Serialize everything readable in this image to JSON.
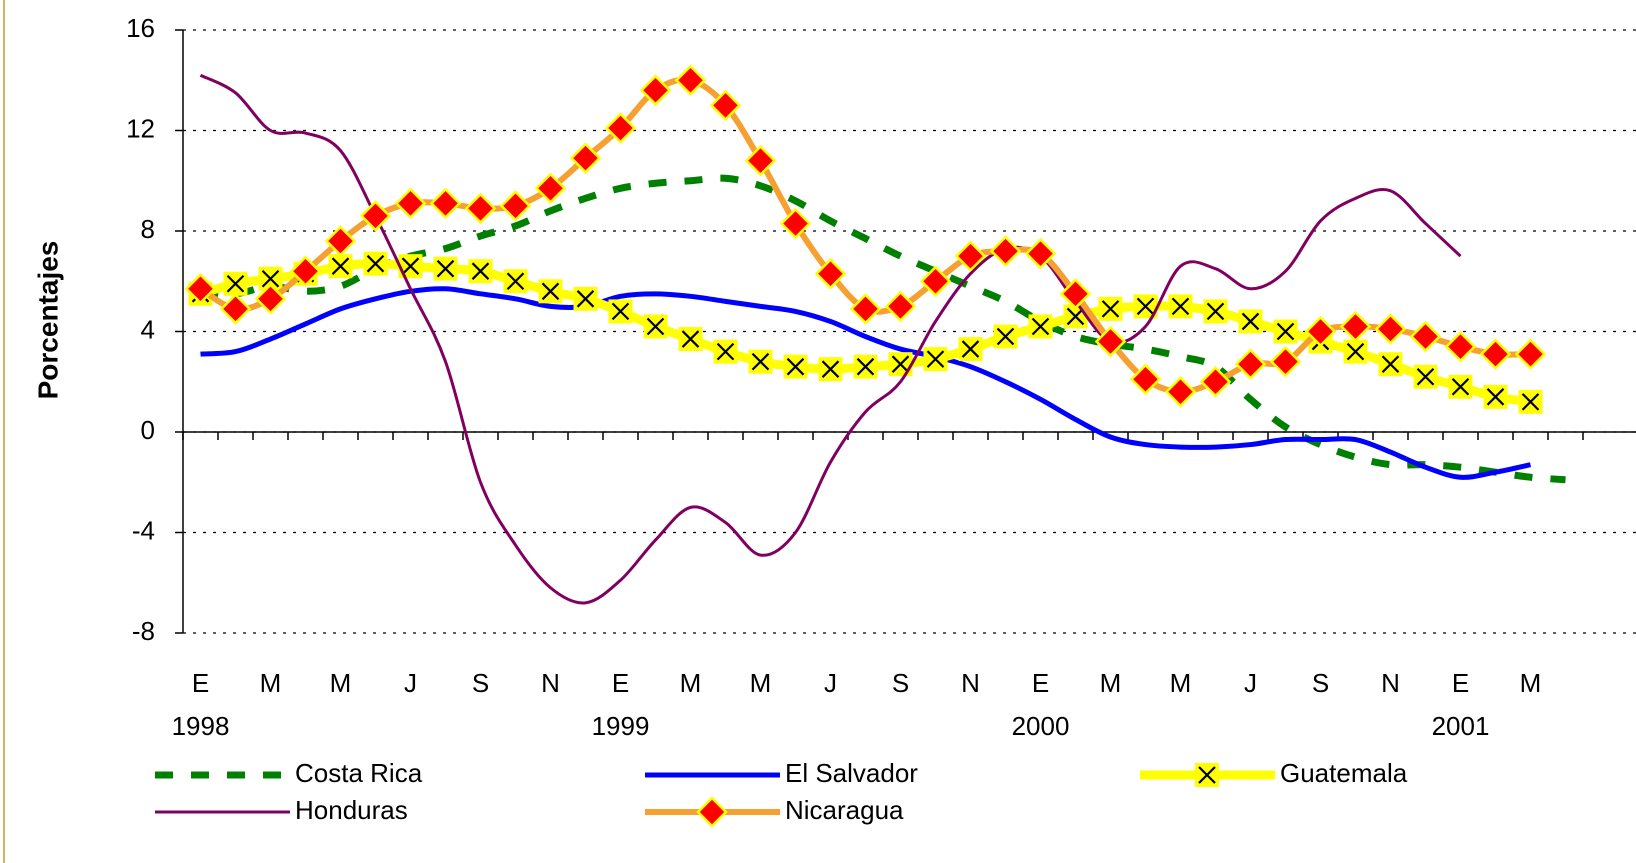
{
  "chart_data": {
    "type": "line",
    "y_label": "Porcentajes",
    "categories": [
      "E",
      null,
      "M",
      null,
      "M",
      null,
      "J",
      null,
      "S",
      null,
      "N",
      null,
      "E",
      null,
      "M",
      null,
      "M",
      null,
      "J",
      null,
      "S",
      null,
      "N",
      null,
      "E",
      null,
      "M",
      null,
      "M",
      null,
      "J",
      null,
      "S",
      null,
      "N",
      null,
      "E",
      null,
      "M",
      null
    ],
    "years": [
      "1998",
      null,
      null,
      null,
      null,
      null,
      null,
      null,
      null,
      null,
      null,
      null,
      "1999",
      null,
      null,
      null,
      null,
      null,
      null,
      null,
      null,
      null,
      null,
      null,
      "2000",
      null,
      null,
      null,
      null,
      null,
      null,
      null,
      null,
      null,
      null,
      null,
      "2001",
      null,
      null,
      null
    ],
    "ylim": [
      -8,
      16
    ],
    "yticks": [
      -8,
      -4,
      0,
      4,
      8,
      12,
      16
    ],
    "grid": true,
    "series": [
      {
        "name": "Costa Rica",
        "color": "#008000",
        "width": 7,
        "dashed": true,
        "marker": null,
        "values": [
          5.6,
          5.5,
          5.8,
          5.6,
          5.8,
          6.5,
          7.0,
          7.3,
          7.8,
          8.2,
          8.8,
          9.3,
          9.7,
          9.9,
          10.0,
          10.1,
          9.8,
          9.2,
          8.4,
          7.7,
          7.0,
          6.4,
          5.8,
          5.2,
          4.4,
          3.8,
          3.5,
          3.3,
          3.0,
          2.6,
          1.3,
          0.2,
          -0.5,
          -1.0,
          -1.3,
          -1.3,
          -1.4,
          -1.6,
          -1.8,
          -1.9
        ]
      },
      {
        "name": "El Salvador",
        "color": "#0000ff",
        "width": 5,
        "dashed": false,
        "marker": null,
        "values": [
          3.1,
          3.2,
          3.7,
          4.3,
          4.9,
          5.3,
          5.6,
          5.7,
          5.5,
          5.3,
          5.0,
          5.0,
          5.4,
          5.5,
          5.4,
          5.2,
          5.0,
          4.8,
          4.4,
          3.8,
          3.3,
          3.0,
          2.6,
          2.0,
          1.3,
          0.5,
          -0.2,
          -0.5,
          -0.6,
          -0.6,
          -0.5,
          -0.3,
          -0.3,
          -0.3,
          -0.8,
          -1.4,
          -1.8,
          -1.6,
          -1.3,
          null
        ]
      },
      {
        "name": "Guatemala",
        "color": "#ffff00",
        "width": 9,
        "dashed": false,
        "marker": "x-square",
        "values": [
          5.5,
          5.9,
          6.1,
          6.3,
          6.6,
          6.7,
          6.6,
          6.5,
          6.4,
          6.0,
          5.6,
          5.3,
          4.8,
          4.2,
          3.7,
          3.2,
          2.8,
          2.6,
          2.5,
          2.6,
          2.7,
          2.9,
          3.3,
          3.8,
          4.2,
          4.6,
          4.9,
          5.0,
          5.0,
          4.8,
          4.4,
          4.0,
          3.6,
          3.2,
          2.7,
          2.2,
          1.8,
          1.4,
          1.2,
          null
        ]
      },
      {
        "name": "Honduras",
        "color": "#800060",
        "width": 3,
        "dashed": false,
        "marker": null,
        "values": [
          14.2,
          13.5,
          12.0,
          11.9,
          11.2,
          8.6,
          5.7,
          2.8,
          -2.0,
          -4.5,
          -6.2,
          -6.8,
          -5.9,
          -4.3,
          -3.0,
          -3.6,
          -4.9,
          -4.0,
          -1.2,
          0.8,
          2.0,
          4.4,
          6.3,
          7.3,
          7.0,
          5.2,
          3.6,
          4.2,
          6.6,
          6.5,
          5.7,
          6.4,
          8.4,
          9.3,
          9.6,
          8.3,
          7.0,
          null,
          null,
          null
        ]
      },
      {
        "name": "Nicaragua",
        "color": "#f5a030",
        "width": 6,
        "dashed": false,
        "marker": "diamond",
        "values": [
          5.7,
          4.9,
          5.3,
          6.4,
          7.6,
          8.6,
          9.1,
          9.1,
          8.9,
          9.0,
          9.7,
          10.9,
          12.1,
          13.6,
          14.0,
          13.0,
          10.8,
          8.3,
          6.3,
          4.9,
          5.0,
          6.0,
          7.0,
          7.2,
          7.1,
          5.5,
          3.6,
          2.1,
          1.6,
          2.0,
          2.7,
          2.8,
          4.0,
          4.2,
          4.1,
          3.8,
          3.4,
          3.1,
          3.1,
          null
        ]
      }
    ]
  }
}
